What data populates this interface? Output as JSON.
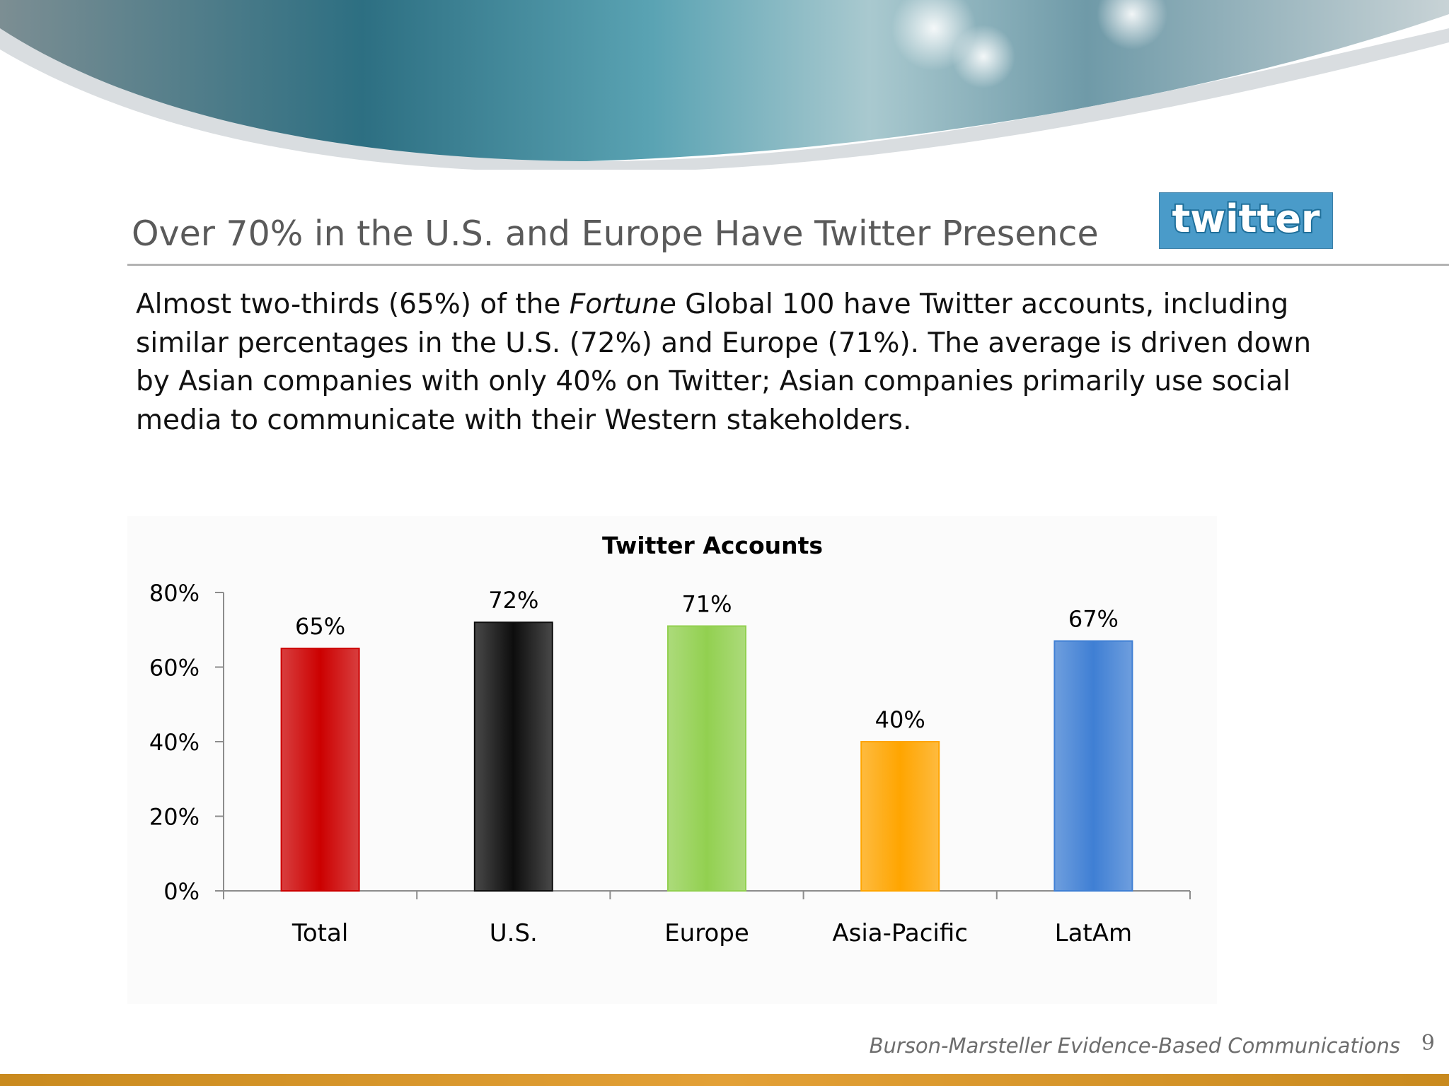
{
  "slide": {
    "title": "Over 70% in the U.S. and Europe Have Twitter Presence",
    "logo_text": "twitter",
    "body_segments": [
      "Almost two-thirds (65%) of the ",
      "Fortune",
      " Global 100 have Twitter accounts, including similar percentages in the U.S. (72%) and Europe (71%).  The average is driven down by Asian companies  with only 40% on Twitter;  Asian companies primarily use social media to communicate with their Western stakeholders."
    ],
    "footer": "Burson-Marsteller Evidence-Based Communications",
    "page_number": "9"
  },
  "chart_data": {
    "type": "bar",
    "title": "Twitter Accounts",
    "categories": [
      "Total",
      "U.S.",
      "Europe",
      "Asia-Pacific",
      "LatAm"
    ],
    "values": [
      65,
      72,
      71,
      40,
      67
    ],
    "data_labels": [
      "65%",
      "72%",
      "71%",
      "40%",
      "67%"
    ],
    "bar_colors": [
      "#cc0000",
      "#0d0d0d",
      "#92d050",
      "#ffa500",
      "#3f7fd4"
    ],
    "ylim": [
      0,
      80
    ],
    "yticks": [
      0,
      20,
      40,
      60,
      80
    ],
    "ytick_labels": [
      "0%",
      "20%",
      "40%",
      "60%",
      "80%"
    ],
    "xlabel": "",
    "ylabel": "",
    "grid": false,
    "legend": "none"
  },
  "colors": {
    "footer_bar": "#d69a2a",
    "title_text": "#5a5a5a"
  }
}
